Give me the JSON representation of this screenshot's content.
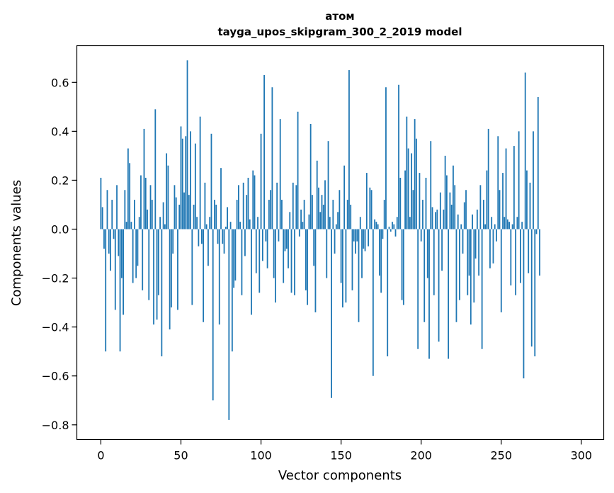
{
  "chart_data": {
    "type": "bar",
    "title": "атом",
    "subtitle": "tayga_upos_skipgram_300_2_2019 model",
    "xlabel": "Vector components",
    "ylabel": "Components values",
    "xlim": [
      -15,
      314
    ],
    "ylim": [
      -0.86,
      0.75
    ],
    "xticks": [
      0,
      50,
      100,
      150,
      200,
      250,
      300
    ],
    "yticks": [
      -0.8,
      -0.6,
      -0.4,
      -0.2,
      0.0,
      0.2,
      0.4,
      0.6
    ],
    "ytick_labels": [
      "−0.8",
      "−0.6",
      "−0.4",
      "−0.2",
      "0.0",
      "0.2",
      "0.4",
      "0.6"
    ],
    "grid": false,
    "bar_color": "#1f77b4",
    "values": [
      0.21,
      0.09,
      -0.08,
      -0.5,
      0.16,
      -0.1,
      -0.17,
      0.12,
      -0.04,
      -0.33,
      0.18,
      -0.11,
      -0.5,
      -0.2,
      -0.35,
      0.16,
      0.03,
      0.33,
      0.27,
      0.03,
      -0.22,
      0.12,
      -0.2,
      -0.15,
      0.05,
      0.22,
      -0.25,
      0.41,
      0.21,
      0.08,
      -0.29,
      0.18,
      0.12,
      -0.39,
      0.49,
      -0.37,
      -0.27,
      0.05,
      -0.52,
      0.11,
      0.02,
      0.31,
      0.26,
      -0.41,
      -0.32,
      -0.1,
      0.18,
      0.13,
      -0.33,
      0.1,
      0.42,
      0.37,
      0.15,
      0.38,
      0.69,
      0.14,
      0.4,
      -0.31,
      0.1,
      0.35,
      0.05,
      -0.07,
      0.46,
      -0.06,
      -0.38,
      0.19,
      0.02,
      -0.15,
      0.05,
      0.39,
      -0.7,
      0.12,
      0.1,
      -0.06,
      -0.39,
      0.25,
      -0.06,
      -0.1,
      0.01,
      0.09,
      -0.78,
      0.03,
      -0.5,
      -0.24,
      -0.21,
      0.12,
      0.18,
      0.03,
      -0.27,
      0.19,
      -0.11,
      0.14,
      0.21,
      0.04,
      -0.35,
      0.24,
      0.22,
      -0.18,
      0.05,
      -0.26,
      0.39,
      -0.13,
      0.63,
      -0.05,
      -0.16,
      0.12,
      0.16,
      0.58,
      -0.2,
      -0.3,
      0.19,
      -0.05,
      0.45,
      0.12,
      -0.22,
      -0.09,
      -0.08,
      -0.16,
      0.07,
      -0.26,
      0.19,
      -0.27,
      0.18,
      0.48,
      -0.03,
      0.08,
      0.03,
      0.12,
      -0.25,
      -0.31,
      0.06,
      0.43,
      0.14,
      -0.15,
      -0.34,
      0.28,
      0.17,
      0.07,
      0.14,
      0.1,
      0.2,
      -0.2,
      0.36,
      0.05,
      -0.69,
      0.12,
      -0.1,
      0.02,
      0.07,
      0.16,
      -0.22,
      -0.32,
      0.26,
      -0.3,
      0.12,
      0.65,
      0.1,
      -0.25,
      -0.05,
      -0.1,
      -0.05,
      -0.38,
      0.05,
      -0.2,
      -0.08,
      -0.09,
      0.23,
      -0.07,
      0.17,
      0.16,
      -0.6,
      0.04,
      0.03,
      0.02,
      -0.19,
      -0.26,
      -0.04,
      0.12,
      0.58,
      -0.52,
      0.01,
      -0.01,
      0.03,
      0.02,
      -0.03,
      0.05,
      0.59,
      0.21,
      -0.29,
      -0.31,
      0.24,
      0.46,
      0.33,
      0.05,
      0.31,
      0.16,
      0.45,
      0.37,
      -0.49,
      0.23,
      -0.05,
      0.12,
      -0.38,
      0.21,
      -0.2,
      -0.53,
      0.36,
      0.09,
      -0.27,
      0.07,
      0.08,
      -0.46,
      0.15,
      -0.17,
      0.08,
      0.3,
      0.22,
      -0.53,
      0.15,
      0.1,
      0.26,
      0.18,
      -0.38,
      0.06,
      -0.29,
      0.02,
      -0.1,
      0.11,
      0.16,
      -0.27,
      -0.19,
      -0.39,
      0.06,
      -0.3,
      -0.12,
      0.08,
      -0.19,
      0.18,
      -0.49,
      0.12,
      0.02,
      0.24,
      0.41,
      -0.16,
      0.05,
      -0.14,
      0.02,
      -0.05,
      0.38,
      0.16,
      -0.34,
      0.23,
      0.05,
      0.33,
      0.04,
      0.03,
      -0.23,
      0.02,
      0.34,
      -0.27,
      0.05,
      0.4,
      -0.22,
      0.03,
      -0.61,
      0.64,
      0.24,
      -0.18,
      0.19,
      -0.48,
      0.4,
      -0.52,
      -0.02,
      0.54,
      -0.19
    ]
  }
}
